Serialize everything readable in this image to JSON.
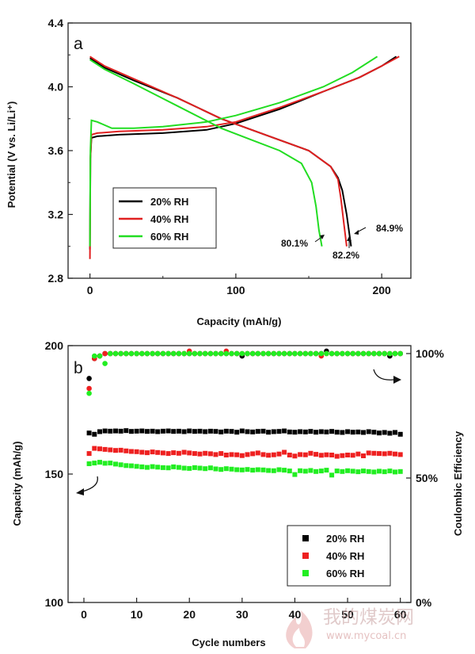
{
  "chart_data": [
    {
      "panel_label": "a",
      "type": "line",
      "xlabel": "Capacity (mAh/g)",
      "ylabel": "Potential (V vs. Li/Li⁺)",
      "xlim": [
        -15,
        220
      ],
      "ylim": [
        2.8,
        4.4
      ],
      "xticks": [
        "0",
        "100",
        "200"
      ],
      "yticks": [
        "2.8",
        "3.2",
        "3.6",
        "4.0",
        "4.4"
      ],
      "legend_position": "lower-left",
      "series": [
        {
          "name": "20% RH",
          "color": "#000000",
          "charge": [
            [
              0,
              2.98
            ],
            [
              0.3,
              3.55
            ],
            [
              1,
              3.68
            ],
            [
              5,
              3.69
            ],
            [
              20,
              3.7
            ],
            [
              50,
              3.71
            ],
            [
              80,
              3.73
            ],
            [
              100,
              3.77
            ],
            [
              130,
              3.86
            ],
            [
              160,
              3.97
            ],
            [
              185,
              4.06
            ],
            [
              200,
              4.13
            ],
            [
              210,
              4.19
            ]
          ],
          "discharge": [
            [
              0,
              4.18
            ],
            [
              10,
              4.12
            ],
            [
              30,
              4.04
            ],
            [
              60,
              3.93
            ],
            [
              90,
              3.8
            ],
            [
              120,
              3.7
            ],
            [
              150,
              3.6
            ],
            [
              165,
              3.5
            ],
            [
              170,
              3.43
            ],
            [
              173,
              3.35
            ],
            [
              176,
              3.2
            ],
            [
              179,
              3.0
            ]
          ]
        },
        {
          "name": "40% RH",
          "color": "#e02020",
          "charge": [
            [
              0,
              2.92
            ],
            [
              0.3,
              3.55
            ],
            [
              1,
              3.7
            ],
            [
              5,
              3.71
            ],
            [
              20,
              3.72
            ],
            [
              50,
              3.73
            ],
            [
              80,
              3.75
            ],
            [
              100,
              3.78
            ],
            [
              130,
              3.87
            ],
            [
              160,
              3.97
            ],
            [
              185,
              4.06
            ],
            [
              200,
              4.13
            ],
            [
              212,
              4.19
            ]
          ],
          "discharge": [
            [
              0,
              4.19
            ],
            [
              10,
              4.13
            ],
            [
              30,
              4.05
            ],
            [
              60,
              3.93
            ],
            [
              90,
              3.8
            ],
            [
              120,
              3.7
            ],
            [
              150,
              3.6
            ],
            [
              165,
              3.5
            ],
            [
              170,
              3.42
            ],
            [
              172,
              3.3
            ],
            [
              174,
              3.15
            ],
            [
              176,
              3.0
            ]
          ]
        },
        {
          "name": "60% RH",
          "color": "#22dd22",
          "charge": [
            [
              0,
              3.0
            ],
            [
              0.3,
              3.6
            ],
            [
              1,
              3.79
            ],
            [
              5,
              3.78
            ],
            [
              15,
              3.74
            ],
            [
              30,
              3.74
            ],
            [
              50,
              3.75
            ],
            [
              80,
              3.78
            ],
            [
              100,
              3.82
            ],
            [
              130,
              3.9
            ],
            [
              160,
              4.0
            ],
            [
              180,
              4.09
            ],
            [
              197,
              4.19
            ]
          ],
          "discharge": [
            [
              0,
              4.17
            ],
            [
              10,
              4.11
            ],
            [
              30,
              4.02
            ],
            [
              60,
              3.88
            ],
            [
              90,
              3.74
            ],
            [
              110,
              3.67
            ],
            [
              130,
              3.6
            ],
            [
              145,
              3.52
            ],
            [
              152,
              3.4
            ],
            [
              155,
              3.25
            ],
            [
              157,
              3.1
            ],
            [
              159,
              3.0
            ]
          ]
        }
      ],
      "annotations": [
        "84.9%",
        "82.2%",
        "80.1%"
      ]
    },
    {
      "panel_label": "b",
      "type": "scatter",
      "xlabel": "Cycle numbers",
      "ylabel": "Capacity (mAh/g)",
      "y2label": "Coulombic Efficiency",
      "xlim": [
        -3,
        62
      ],
      "ylim": [
        100,
        200
      ],
      "y2lim": [
        0,
        100
      ],
      "xticks": [
        "0",
        "10",
        "20",
        "30",
        "40",
        "50",
        "60"
      ],
      "yticks": [
        "100",
        "150",
        "200"
      ],
      "y2ticks": [
        "0%",
        "50%",
        "100%"
      ],
      "legend_position": "lower-right",
      "series": [
        {
          "name": "20% RH",
          "color": "#000000",
          "capacity": [
            166.0,
            165.5,
            166.5,
            166.8,
            166.7,
            166.8,
            166.7,
            166.9,
            166.6,
            166.7,
            166.8,
            166.6,
            166.7,
            166.5,
            166.7,
            166.8,
            166.6,
            166.7,
            166.5,
            166.8,
            166.6,
            166.7,
            166.5,
            166.7,
            166.6,
            166.4,
            166.7,
            166.6,
            166.3,
            166.8,
            166.5,
            166.4,
            166.6,
            166.7,
            166.3,
            166.5,
            166.6,
            166.8,
            166.4,
            166.3,
            166.5,
            166.4,
            166.6,
            166.3,
            166.5,
            166.4,
            166.6,
            166.3,
            166.2,
            166.5,
            166.3,
            166.4,
            166.2,
            166.5,
            166.3,
            166.0,
            166.2,
            165.9,
            166.2,
            165.5
          ],
          "ce": [
            90,
            98,
            99,
            100,
            100,
            100,
            100,
            100,
            100,
            100,
            100,
            100,
            100,
            100,
            100,
            100,
            100,
            100,
            100,
            100,
            100,
            100,
            100,
            100,
            100,
            100,
            100,
            100,
            100,
            99,
            100,
            100,
            100,
            100,
            100,
            100,
            100,
            100,
            100,
            100,
            100,
            100,
            100,
            100,
            100,
            101,
            100,
            100,
            100,
            100,
            100,
            100,
            100,
            100,
            100,
            100,
            100,
            99,
            100,
            100
          ]
        },
        {
          "name": "40% RH",
          "color": "#ee2020",
          "capacity": [
            158.0,
            160.0,
            159.8,
            159.6,
            159.4,
            159.2,
            159.3,
            159.0,
            158.8,
            158.7,
            158.5,
            158.3,
            158.6,
            158.4,
            158.2,
            158.0,
            158.3,
            158.1,
            158.5,
            158.2,
            158.0,
            157.8,
            158.1,
            157.9,
            157.6,
            158.0,
            157.4,
            157.6,
            157.5,
            157.2,
            157.6,
            157.9,
            158.2,
            157.6,
            157.3,
            157.5,
            157.8,
            158.5,
            157.4,
            157.0,
            157.6,
            157.5,
            158.1,
            157.7,
            157.3,
            157.5,
            157.4,
            156.9,
            157.2,
            157.4,
            157.3,
            157.8,
            157.1,
            158.2,
            158.1,
            158.0,
            157.9,
            158.1,
            157.8,
            157.6
          ],
          "ce": [
            86,
            98,
            99,
            100,
            100,
            100,
            100,
            100,
            100,
            100,
            100,
            100,
            100,
            100,
            100,
            100,
            100,
            100,
            100,
            101,
            100,
            100,
            100,
            100,
            100,
            100,
            101,
            100,
            100,
            100,
            100,
            100,
            100,
            100,
            100,
            100,
            100,
            100,
            100,
            100,
            100,
            100,
            100,
            100,
            99,
            100,
            100,
            100,
            100,
            100,
            100,
            100,
            100,
            100,
            100,
            100,
            100,
            100,
            100,
            100
          ]
        },
        {
          "name": "60% RH",
          "color": "#22ee22",
          "capacity": [
            154.0,
            154.3,
            154.6,
            154.2,
            154.3,
            153.9,
            153.6,
            153.3,
            153.2,
            153.0,
            152.8,
            152.6,
            152.9,
            152.7,
            152.5,
            152.4,
            152.8,
            152.6,
            152.3,
            152.2,
            152.5,
            152.3,
            152.1,
            152.4,
            152.0,
            151.8,
            152.1,
            151.9,
            151.7,
            151.6,
            151.8,
            151.5,
            151.7,
            151.6,
            151.4,
            151.3,
            151.7,
            151.5,
            151.2,
            149.8,
            151.3,
            151.1,
            151.4,
            151.0,
            151.2,
            151.5,
            149.6,
            151.2,
            151.0,
            151.3,
            151.1,
            150.9,
            151.2,
            151.0,
            150.8,
            151.1,
            150.9,
            151.2,
            150.8,
            151.0
          ],
          "ce": [
            84,
            99,
            99,
            96,
            100,
            100,
            100,
            100,
            100,
            100,
            100,
            100,
            100,
            100,
            100,
            100,
            100,
            100,
            100,
            100,
            100,
            100,
            100,
            100,
            100,
            100,
            100,
            100,
            100,
            100,
            100,
            100,
            100,
            100,
            100,
            100,
            100,
            100,
            100,
            100,
            100,
            100,
            100,
            100,
            100,
            100,
            100,
            100,
            100,
            100,
            100,
            100,
            100,
            100,
            100,
            100,
            100,
            100,
            100,
            100
          ]
        }
      ]
    }
  ],
  "watermark": {
    "brand": "我的煤炭网",
    "url": "www.mycoal.cn"
  }
}
